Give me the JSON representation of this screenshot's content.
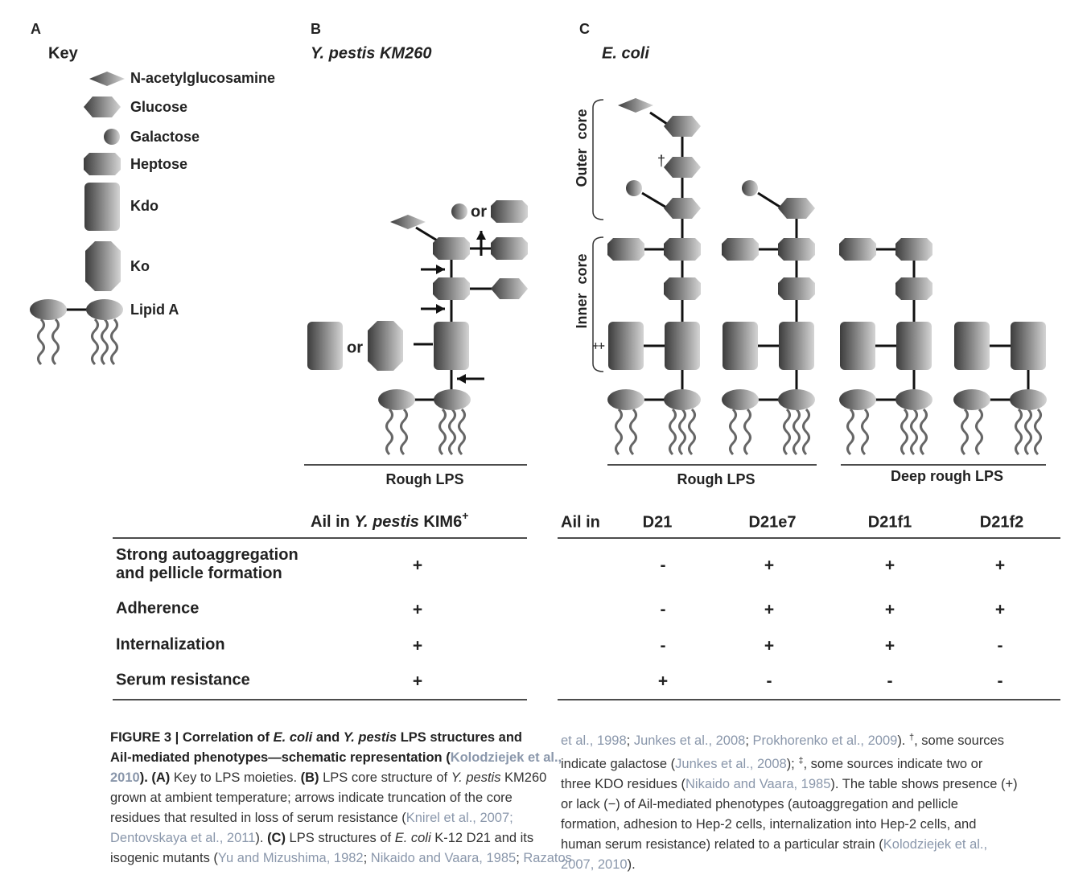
{
  "panels": {
    "a": "A",
    "b": "B",
    "c": "C"
  },
  "key": {
    "title": "Key",
    "items": [
      "N-acetylglucosamine",
      "Glucose",
      "Galactose",
      "Heptose",
      "Kdo",
      "Ko",
      "Lipid A"
    ]
  },
  "panel_b": {
    "title": "Y. pestis KM260",
    "or": [
      "or",
      "or"
    ],
    "caption": "Rough LPS"
  },
  "panel_c": {
    "title": "E. coli",
    "outer_core": "Outer core",
    "inner_core": "Inner core",
    "dagger": "†",
    "double_dagger": "‡",
    "rough": "Rough LPS",
    "deep_rough": "Deep rough LPS"
  },
  "table": {
    "left_header": [
      "Ail in ",
      "Y. pestis",
      " KIM6",
      "+"
    ],
    "right_header": [
      "Ail in",
      "D21",
      "D21e7",
      "D21f1",
      "D21f2"
    ],
    "rows": [
      {
        "label": [
          "Strong autoaggregation",
          "and pellicle formation"
        ],
        "values": [
          "+",
          "-",
          "+",
          "+",
          "+"
        ]
      },
      {
        "label": [
          "Adherence"
        ],
        "values": [
          "+",
          "-",
          "+",
          "+",
          "+"
        ]
      },
      {
        "label": [
          "Internalization"
        ],
        "values": [
          "+",
          "-",
          "+",
          "+",
          "-"
        ]
      },
      {
        "label": [
          "Serum resistance"
        ],
        "values": [
          "+",
          "+",
          "-",
          "-",
          "-"
        ]
      }
    ]
  },
  "caption": {
    "left": [
      [
        {
          "text": "FIGURE 3 | Correlation of ",
          "style": "bold"
        },
        {
          "text": "E. coli",
          "style": "bold-italic"
        },
        {
          "text": " and ",
          "style": "bold"
        },
        {
          "text": "Y. pestis",
          "style": "bold-italic"
        },
        {
          "text": " LPS structures and",
          "style": "bold"
        }
      ],
      [
        {
          "text": "Ail-mediated phenotypes—schematic representation (",
          "style": "bold"
        },
        {
          "text": "Kolodziejek et al.,",
          "style": "link-bold"
        }
      ],
      [
        {
          "text": "2010",
          "style": "link-bold"
        },
        {
          "text": "). (A)",
          "style": "bold"
        },
        {
          "text": " Key to LPS moieties. ",
          "style": "normal"
        },
        {
          "text": "(B)",
          "style": "bold"
        },
        {
          "text": " LPS core structure of ",
          "style": "normal"
        },
        {
          "text": "Y. pestis",
          "style": "italic"
        },
        {
          "text": " KM260",
          "style": "normal"
        }
      ],
      [
        {
          "text": "grown at ambient temperature; arrows indicate truncation of the core",
          "style": "normal"
        }
      ],
      [
        {
          "text": "residues that resulted in loss of serum resistance (",
          "style": "normal"
        },
        {
          "text": "Knirel et al., 2007;",
          "style": "link"
        }
      ],
      [
        {
          "text": "Dentovskaya et al., 2011",
          "style": "link"
        },
        {
          "text": "). ",
          "style": "normal"
        },
        {
          "text": "(C)",
          "style": "bold"
        },
        {
          "text": " LPS structures of ",
          "style": "normal"
        },
        {
          "text": "E. coli",
          "style": "italic"
        },
        {
          "text": " K-12 D21 and its",
          "style": "normal"
        }
      ],
      [
        {
          "text": "isogenic mutants (",
          "style": "normal"
        },
        {
          "text": "Yu and Mizushima, 1982",
          "style": "link"
        },
        {
          "text": "; ",
          "style": "normal"
        },
        {
          "text": "Nikaido and Vaara, 1985",
          "style": "link"
        },
        {
          "text": "; ",
          "style": "normal"
        },
        {
          "text": "Razatos",
          "style": "link"
        }
      ]
    ],
    "right": [
      [
        {
          "text": "et al., 1998",
          "style": "link"
        },
        {
          "text": "; ",
          "style": "normal"
        },
        {
          "text": "Junkes et al., 2008",
          "style": "link"
        },
        {
          "text": "; ",
          "style": "normal"
        },
        {
          "text": "Prokhorenko et al., 2009",
          "style": "link"
        },
        {
          "text": "). ",
          "style": "normal"
        },
        {
          "text": "†",
          "style": "sup"
        },
        {
          "text": ", some sources",
          "style": "normal"
        }
      ],
      [
        {
          "text": "indicate galactose (",
          "style": "normal"
        },
        {
          "text": "Junkes et al., 2008",
          "style": "link"
        },
        {
          "text": "); ",
          "style": "normal"
        },
        {
          "text": "‡",
          "style": "sup"
        },
        {
          "text": ", some sources indicate two or",
          "style": "normal"
        }
      ],
      [
        {
          "text": "three KDO residues (",
          "style": "normal"
        },
        {
          "text": "Nikaido and Vaara, 1985",
          "style": "link"
        },
        {
          "text": "). The table shows presence (+)",
          "style": "normal"
        }
      ],
      [
        {
          "text": "or lack (−) of Ail-mediated phenotypes (autoaggregation and pellicle",
          "style": "normal"
        }
      ],
      [
        {
          "text": "formation, adhesion to Hep-2 cells, internalization into Hep-2 cells, and",
          "style": "normal"
        }
      ],
      [
        {
          "text": "human serum resistance) related to a particular strain (",
          "style": "normal"
        },
        {
          "text": "Kolodziejek et al.,",
          "style": "link"
        }
      ],
      [
        {
          "text": "2007, 2010",
          "style": "link"
        },
        {
          "text": ").",
          "style": "normal"
        }
      ]
    ]
  }
}
